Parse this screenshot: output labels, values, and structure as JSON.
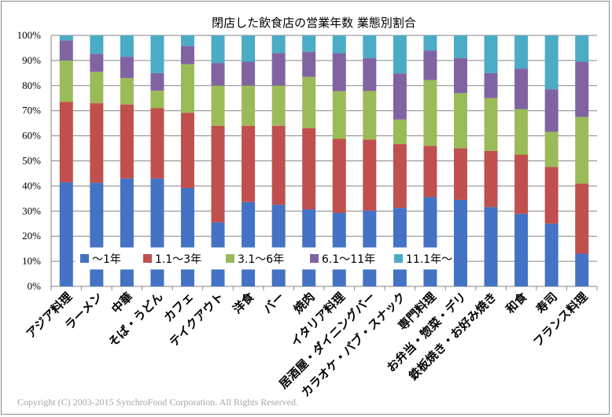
{
  "chart_data": {
    "type": "bar",
    "stacked": "percent",
    "title": "閉店した飲食店の営業年数 業態別割合",
    "categories": [
      "アジア料理",
      "ラーメン",
      "中華",
      "そば・うどん",
      "カフェ",
      "テイクアウト",
      "洋食",
      "バー",
      "焼肉",
      "イタリア料理",
      "居酒屋・ダイニングバー",
      "カラオケ・パブ・スナック",
      "専門料理",
      "お弁当・惣菜・デリ",
      "鉄板焼き・お好み焼き",
      "和食",
      "寿司",
      "フランス料理"
    ],
    "series": [
      {
        "name": "～1年",
        "color": "#4472c4",
        "values": [
          41.5,
          41.3,
          43.0,
          43.0,
          39.2,
          25.5,
          33.6,
          32.5,
          30.7,
          29.3,
          30.2,
          31.3,
          35.6,
          34.5,
          31.6,
          28.9,
          25.0,
          13.0
        ]
      },
      {
        "name": "1.1～3年",
        "color": "#c0504d",
        "values": [
          32.0,
          31.7,
          29.5,
          28.0,
          30.0,
          38.5,
          30.4,
          31.5,
          32.3,
          29.5,
          28.3,
          25.4,
          20.4,
          20.5,
          22.4,
          23.6,
          22.6,
          28.0
        ]
      },
      {
        "name": "3.1～6年",
        "color": "#9bbb59",
        "values": [
          16.5,
          12.5,
          10.5,
          7.0,
          19.3,
          16.0,
          16.0,
          16.0,
          20.5,
          19.0,
          19.4,
          9.8,
          26.2,
          22.0,
          21.0,
          18.1,
          14.0,
          26.5
        ]
      },
      {
        "name": "6.1～11年",
        "color": "#8064a2",
        "values": [
          8.0,
          7.2,
          8.5,
          7.0,
          7.3,
          9.0,
          9.5,
          13.0,
          10.0,
          15.2,
          13.1,
          18.4,
          11.8,
          14.0,
          10.0,
          16.2,
          17.0,
          22.0
        ]
      },
      {
        "name": "11.1年～",
        "color": "#4bacc6",
        "values": [
          2.0,
          7.3,
          8.5,
          15.0,
          4.2,
          11.0,
          10.5,
          7.0,
          6.5,
          7.0,
          9.0,
          15.1,
          6.0,
          9.0,
          15.0,
          13.2,
          21.4,
          10.5
        ]
      }
    ],
    "ylim": [
      0,
      100
    ],
    "yticks": [
      0,
      10,
      20,
      30,
      40,
      50,
      60,
      70,
      80,
      90,
      100
    ],
    "ytick_labels": [
      "0%",
      "10%",
      "20%",
      "30%",
      "40%",
      "50%",
      "60%",
      "70%",
      "80%",
      "90%",
      "100%"
    ],
    "grid": true,
    "legend": "bottom-center overlay"
  },
  "copyright": "Copyright (C) 2003-2015 SynchroFood Corporation. All Rights Reserved."
}
